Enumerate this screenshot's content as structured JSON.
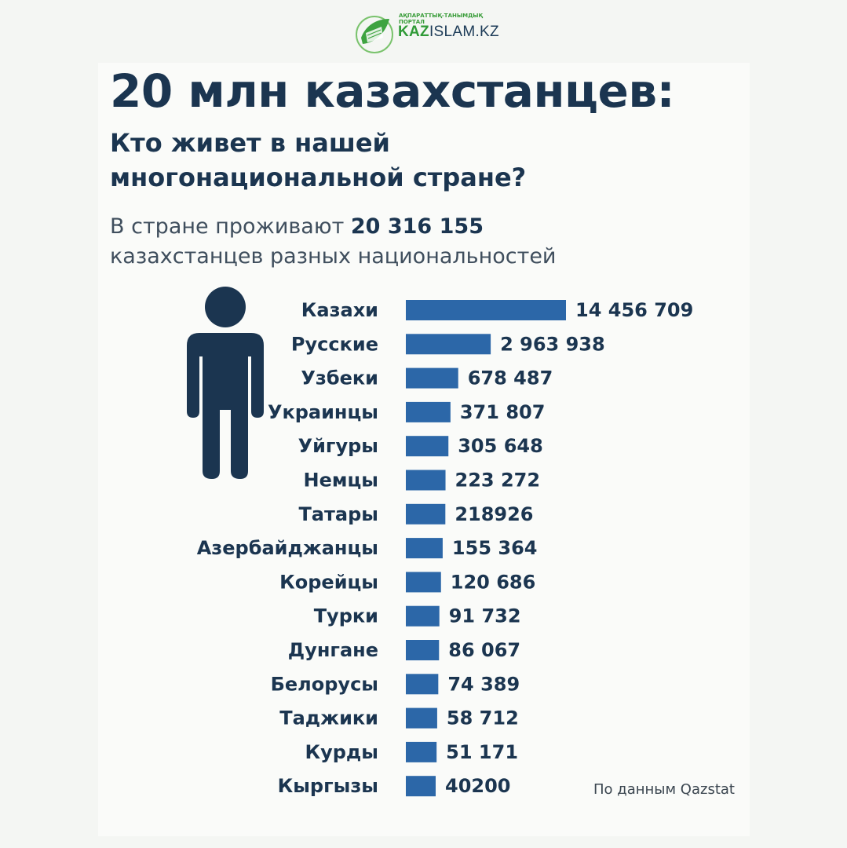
{
  "logo": {
    "tagline": "АҚПАРАТТЫҚ-ТАНЫМДЫҚ ПОРТАЛ",
    "name_prefix": "KAZ",
    "name_suffix": "ISLAM.KZ",
    "colors": {
      "green": "#2f9a36",
      "navy": "#1c3b57"
    }
  },
  "header": {
    "title": "20 млн казахстанцев:",
    "subtitle": "Кто живет в нашей многонациональной стране?",
    "lead_prefix": "В стране проживают ",
    "lead_number": "20 316 155",
    "lead_suffix": " казахстанцев разных национальностей"
  },
  "figure_icon": "person-silhouette-icon",
  "chart_data": {
    "type": "bar",
    "orientation": "horizontal",
    "categories": [
      "Казахи",
      "Русские",
      "Узбеки",
      "Украинцы",
      "Уйгуры",
      "Немцы",
      "Татары",
      "Азербайджанцы",
      "Корейцы",
      "Турки",
      "Дунгане",
      "Белорусы",
      "Таджики",
      "Курды",
      "Кыргызы"
    ],
    "values": [
      14456709,
      2963938,
      678487,
      371807,
      305648,
      223272,
      218926,
      155364,
      120686,
      91732,
      86067,
      74389,
      58712,
      51171,
      40200
    ],
    "value_labels": [
      "14 456 709",
      "2 963 938",
      "678 487",
      "371 807",
      "305 648",
      "223 272",
      "218926",
      "155 364",
      "120 686",
      "91 732",
      "86 067",
      "74 389",
      "58 712",
      "51 171",
      "40200"
    ],
    "bar_color": "#2c67a8",
    "label_color": "#1b3550",
    "grid": false
  },
  "footer": {
    "source": "По данным Qazstat"
  }
}
